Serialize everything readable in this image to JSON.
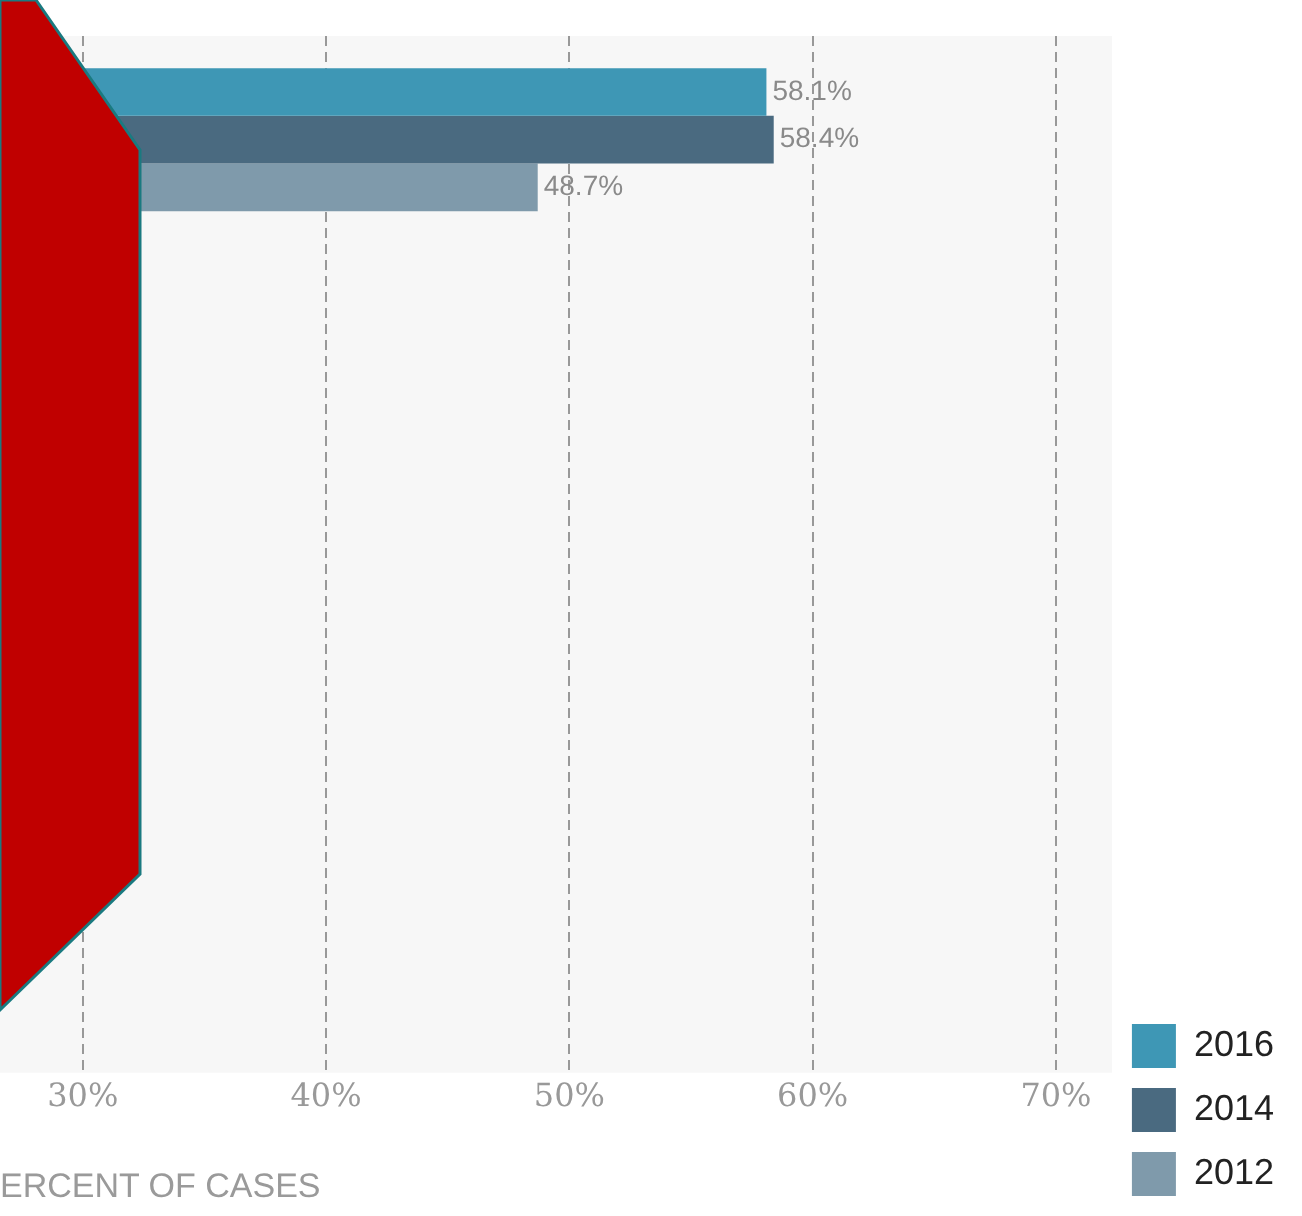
{
  "chart_data": {
    "type": "bar",
    "orientation": "horizontal",
    "categories": [
      null,
      null,
      null,
      null,
      null
    ],
    "series": [
      {
        "name": "2016",
        "color": "#3e97b5",
        "values": [
          58.1,
          null,
          null,
          null,
          null
        ],
        "value_labels": [
          "58.1%",
          null,
          null,
          null,
          null
        ]
      },
      {
        "name": "2014",
        "color": "#4a6a80",
        "values": [
          58.4,
          null,
          null,
          null,
          null
        ],
        "value_labels": [
          "58.4%",
          null,
          null,
          null,
          null
        ]
      },
      {
        "name": "2012",
        "color": "#7f9aab",
        "values": [
          48.7,
          null,
          null,
          null,
          null
        ],
        "value_labels": [
          "48.7%",
          null,
          null,
          null,
          null
        ]
      }
    ],
    "xlim": [
      26.6,
      72.3
    ],
    "xticks": [
      {
        "value": 30,
        "label": "30%"
      },
      {
        "value": 40,
        "label": "40%"
      },
      {
        "value": 50,
        "label": "50%"
      },
      {
        "value": 60,
        "label": "60%"
      },
      {
        "value": 70,
        "label": "70%"
      }
    ],
    "xlabel": "ERCENT OF CASES",
    "grid": "x",
    "legend": "bottom right"
  }
}
